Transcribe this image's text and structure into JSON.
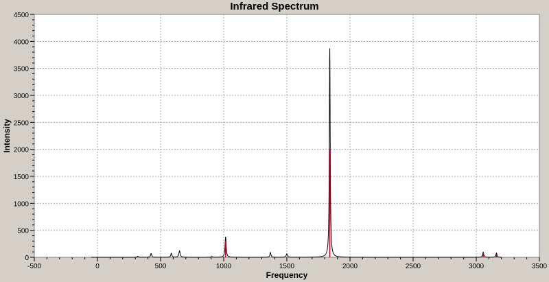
{
  "window": {
    "title": "Infrared Spectrum"
  },
  "colors": {
    "background": "#d4d0c8",
    "plot_background": "#ffffff",
    "grid": "#a8a8a8",
    "spectrum_line": "#000000",
    "stick_line": "#c00020"
  },
  "chart_data": {
    "type": "line",
    "title": "Infrared Spectrum",
    "xlabel": "Frequency",
    "ylabel": "Intensity",
    "xlim": [
      -500,
      3500
    ],
    "ylim": [
      0,
      4500
    ],
    "xticks": [
      -500,
      0,
      500,
      1000,
      1500,
      2000,
      2500,
      3000,
      3500
    ],
    "yticks": [
      0,
      500,
      1000,
      1500,
      2000,
      2500,
      3000,
      3500,
      4000,
      4500
    ],
    "grid": true,
    "x_range": [
      -50,
      3200
    ],
    "peaks": [
      {
        "x": 320,
        "y": 20,
        "width": 10
      },
      {
        "x": 425,
        "y": 70,
        "width": 10
      },
      {
        "x": 585,
        "y": 75,
        "width": 10
      },
      {
        "x": 650,
        "y": 120,
        "width": 12
      },
      {
        "x": 905,
        "y": 15,
        "width": 10
      },
      {
        "x": 1015,
        "y": 380,
        "width": 10
      },
      {
        "x": 1370,
        "y": 90,
        "width": 10
      },
      {
        "x": 1500,
        "y": 65,
        "width": 12
      },
      {
        "x": 1840,
        "y": 3870,
        "width": 8
      },
      {
        "x": 3055,
        "y": 95,
        "width": 10
      },
      {
        "x": 3160,
        "y": 80,
        "width": 10
      }
    ],
    "sticks": [
      {
        "x": 1015,
        "y": 300
      },
      {
        "x": 1840,
        "y": 2000
      },
      {
        "x": 3055,
        "y": 60
      },
      {
        "x": 3160,
        "y": 55
      }
    ]
  }
}
